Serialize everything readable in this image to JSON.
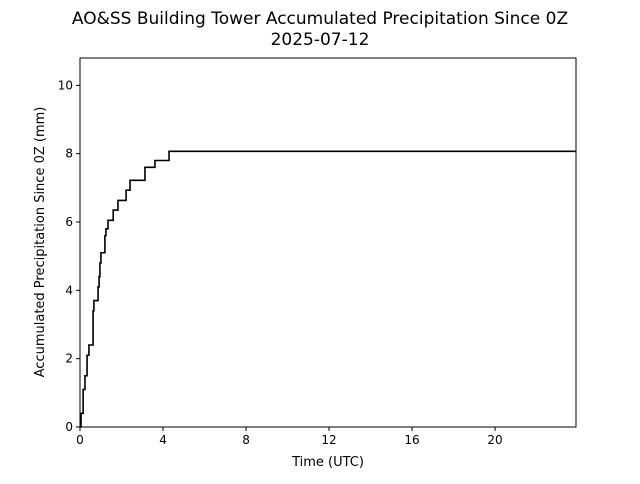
{
  "chart_data": {
    "type": "line",
    "step": "post",
    "title": "AO&SS Building Tower Accumulated Precipitation Since 0Z",
    "subtitle": "2025-07-12",
    "xlabel": "Time (UTC)",
    "ylabel": "Accumulated Precipitation Since 0Z (mm)",
    "xlim": [
      0,
      23.9
    ],
    "ylim": [
      0,
      10.8
    ],
    "xticks": [
      0,
      4,
      8,
      12,
      16,
      20
    ],
    "yticks": [
      0,
      2,
      4,
      6,
      8,
      10
    ],
    "grid": false,
    "line_color": "#000000",
    "series": [
      {
        "name": "Accumulated precipitation",
        "x": [
          0,
          0.05,
          0.15,
          0.24,
          0.34,
          0.43,
          0.63,
          0.67,
          0.87,
          0.92,
          0.96,
          1.01,
          1.2,
          1.25,
          1.35,
          1.6,
          1.83,
          2.22,
          2.41,
          3.13,
          3.61,
          4.29,
          23.9
        ],
        "y": [
          0,
          0.4,
          1.1,
          1.5,
          2.1,
          2.4,
          3.4,
          3.7,
          4.1,
          4.4,
          4.8,
          5.1,
          5.6,
          5.8,
          6.05,
          6.35,
          6.63,
          6.93,
          7.22,
          7.6,
          7.8,
          8.07,
          8.07
        ]
      }
    ]
  }
}
